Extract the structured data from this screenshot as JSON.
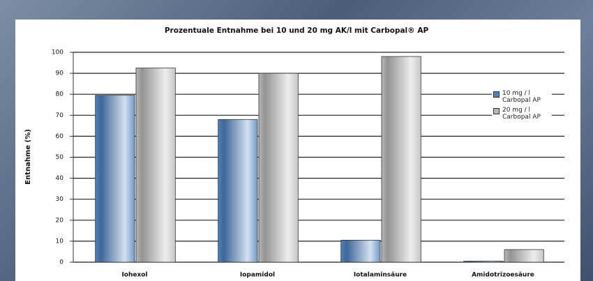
{
  "chart_data": {
    "type": "bar",
    "title": "Prozentuale Entnahme bei 10 und 20 mg AK/l mit Carbopal® AP",
    "y_label": "Entnahme (%)",
    "categories": [
      "Iohexol",
      "Iopamidol",
      "Iotalaminsäure",
      "Amidotrizoesäure"
    ],
    "series": [
      {
        "name": "10 mg / l Carbopal AP",
        "color": "#4f81bd",
        "values": [
          79.5,
          68,
          10.5,
          0.5
        ]
      },
      {
        "name": "20 mg / l Carbopal AP",
        "color": "#b8b8b8",
        "values": [
          92.5,
          90,
          98,
          6
        ]
      }
    ],
    "ylim": [
      0,
      100
    ],
    "yticks": [
      0,
      10,
      20,
      30,
      40,
      50,
      60,
      70,
      80,
      90,
      100
    ],
    "grid": true,
    "legend": "right"
  }
}
